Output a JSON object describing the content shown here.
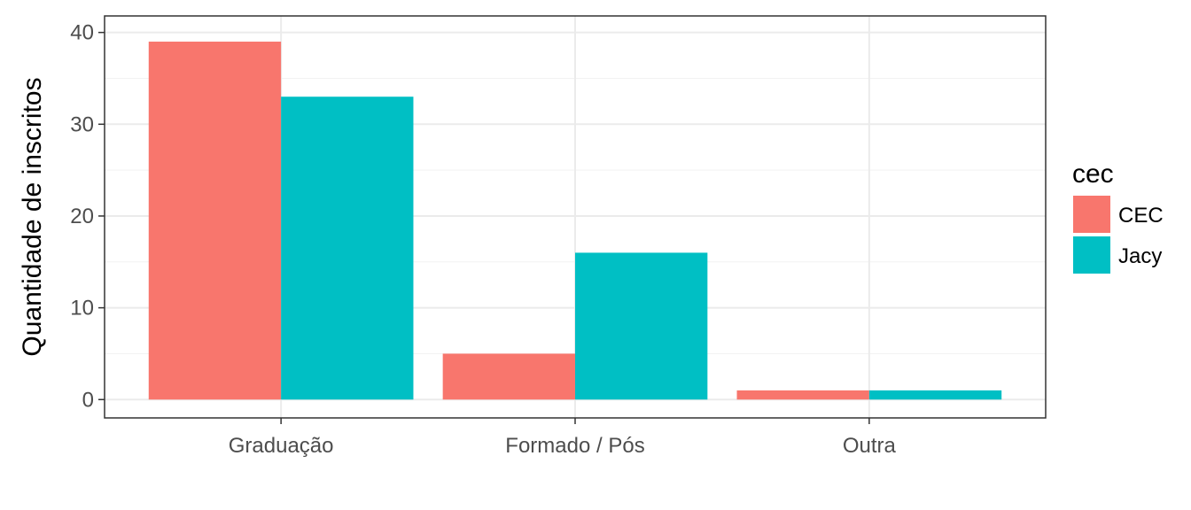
{
  "chart_data": {
    "type": "bar",
    "categories": [
      "Graduação",
      "Formado / Pós",
      "Outra"
    ],
    "series": [
      {
        "name": "CEC",
        "values": [
          39,
          5,
          1
        ],
        "color": "#F8766D"
      },
      {
        "name": "Jacy",
        "values": [
          33,
          16,
          1
        ],
        "color": "#00BFC4"
      }
    ],
    "xlabel": "",
    "ylabel": "Quantidade de inscritos",
    "ylim": [
      -2,
      41.8
    ],
    "yticks": [
      0,
      10,
      20,
      30,
      40
    ],
    "legend": {
      "title": "cec",
      "position": "right"
    },
    "grid": true,
    "panel_border": true
  }
}
